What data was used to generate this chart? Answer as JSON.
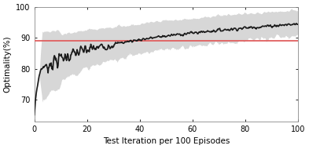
{
  "title": "",
  "xlabel": "Test Iteration per 100 Episodes",
  "ylabel": "Optimality(%)",
  "xlim": [
    0,
    100
  ],
  "ylim": [
    63,
    100
  ],
  "yticks": [
    70,
    80,
    90,
    100
  ],
  "xticks": [
    0,
    20,
    40,
    60,
    80,
    100
  ],
  "reference_line_y": 89,
  "reference_line_color": "#e06060",
  "mean_line_color": "#1a1a1a",
  "fill_color": "#d0d0d0",
  "fill_alpha": 0.85,
  "line_width": 1.2,
  "background_color": "#ffffff",
  "figsize": [
    3.93,
    1.9
  ],
  "dpi": 100
}
